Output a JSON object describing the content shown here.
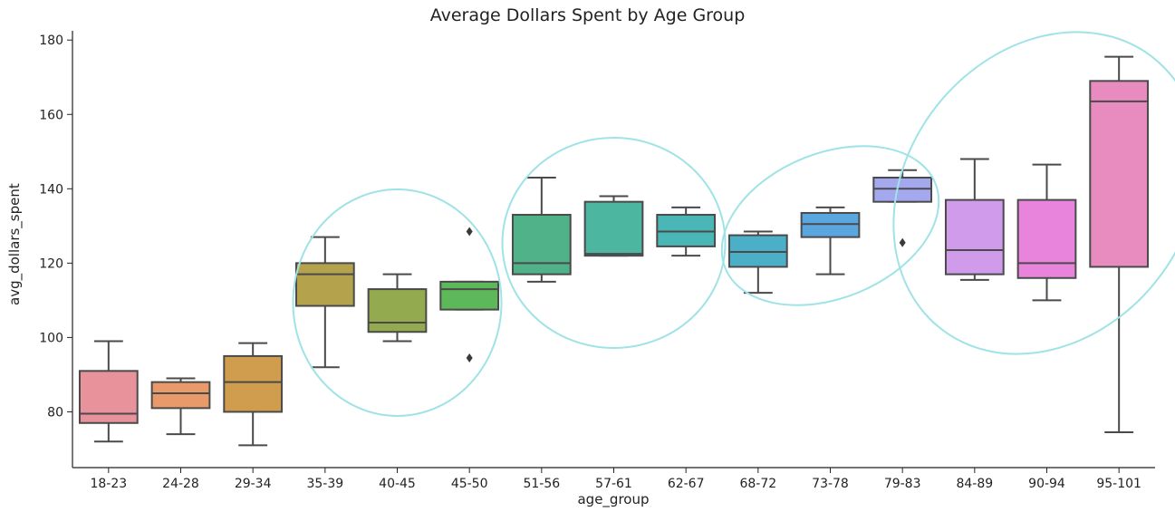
{
  "chart_data": {
    "type": "box",
    "title": "Average Dollars Spent by Age Group",
    "xlabel": "age_group",
    "ylabel": "avg_dollars_spent",
    "ylim": [
      65,
      182
    ],
    "yticks": [
      80,
      100,
      120,
      140,
      160,
      180
    ],
    "grid": false,
    "legend": "none",
    "categories": [
      "18-23",
      "24-28",
      "29-34",
      "35-39",
      "40-45",
      "45-50",
      "51-56",
      "57-61",
      "62-67",
      "68-72",
      "73-78",
      "79-83",
      "84-89",
      "90-94",
      "95-101"
    ],
    "boxes": [
      {
        "category": "18-23",
        "whisker_low": 72,
        "q1": 77,
        "median": 79.5,
        "q3": 91,
        "whisker_high": 99,
        "outliers": [],
        "color": "#e8929c"
      },
      {
        "category": "24-28",
        "whisker_low": 74,
        "q1": 81,
        "median": 85,
        "q3": 88,
        "whisker_high": 89,
        "outliers": [],
        "color": "#e99a6a"
      },
      {
        "category": "29-34",
        "whisker_low": 71,
        "q1": 80,
        "median": 88,
        "q3": 95,
        "whisker_high": 98.5,
        "outliers": [],
        "color": "#d09c4e"
      },
      {
        "category": "35-39",
        "whisker_low": 92,
        "q1": 108.5,
        "median": 117,
        "q3": 120,
        "whisker_high": 127,
        "outliers": [],
        "color": "#b5a24c"
      },
      {
        "category": "40-45",
        "whisker_low": 99,
        "q1": 101.5,
        "median": 104,
        "q3": 113,
        "whisker_high": 117,
        "outliers": [],
        "color": "#94aa4e"
      },
      {
        "category": "45-50",
        "whisker_low": 107.5,
        "q1": 107.5,
        "median": 113,
        "q3": 115,
        "whisker_high": 115,
        "outliers": [
          94.5,
          128.5
        ],
        "color": "#5db85a"
      },
      {
        "category": "51-56",
        "whisker_low": 115,
        "q1": 117,
        "median": 120,
        "q3": 133,
        "whisker_high": 143,
        "outliers": [],
        "color": "#4fb288"
      },
      {
        "category": "57-61",
        "whisker_low": 122,
        "q1": 122,
        "median": 122.5,
        "q3": 136.5,
        "whisker_high": 138,
        "outliers": [],
        "color": "#4cb6a0"
      },
      {
        "category": "62-67",
        "whisker_low": 122,
        "q1": 124.5,
        "median": 128.5,
        "q3": 133,
        "whisker_high": 135,
        "outliers": [],
        "color": "#4ab6b5"
      },
      {
        "category": "68-72",
        "whisker_low": 112,
        "q1": 119,
        "median": 123,
        "q3": 127.5,
        "whisker_high": 128.5,
        "outliers": [],
        "color": "#4cafc8"
      },
      {
        "category": "73-78",
        "whisker_low": 117,
        "q1": 127,
        "median": 130.5,
        "q3": 133.5,
        "whisker_high": 135,
        "outliers": [],
        "color": "#5aa6df"
      },
      {
        "category": "79-83",
        "whisker_low": 136.5,
        "q1": 136.5,
        "median": 140,
        "q3": 143,
        "whisker_high": 145,
        "outliers": [
          125.5
        ],
        "color": "#a4a8ee"
      },
      {
        "category": "84-89",
        "whisker_low": 115.5,
        "q1": 117,
        "median": 123.5,
        "q3": 137,
        "whisker_high": 148,
        "outliers": [],
        "color": "#cf9bea"
      },
      {
        "category": "90-94",
        "whisker_low": 110,
        "q1": 116,
        "median": 120,
        "q3": 137,
        "whisker_high": 146.5,
        "outliers": [],
        "color": "#e884dc"
      },
      {
        "category": "95-101",
        "whisker_low": 74.5,
        "q1": 119,
        "median": 163.5,
        "q3": 169,
        "whisker_high": 175.5,
        "outliers": [],
        "color": "#e88cbf"
      }
    ],
    "annotations": [
      {
        "type": "ellipse",
        "spans": [
          "35-39",
          "40-45",
          "45-50"
        ],
        "color": "#9fe3e6"
      },
      {
        "type": "ellipse",
        "spans": [
          "51-56",
          "57-61",
          "62-67"
        ],
        "color": "#9fe3e6"
      },
      {
        "type": "ellipse",
        "spans": [
          "68-72",
          "73-78",
          "79-83"
        ],
        "color": "#9fe3e6"
      },
      {
        "type": "ellipse",
        "spans": [
          "84-89",
          "90-94",
          "95-101"
        ],
        "color": "#9fe3e6"
      }
    ]
  }
}
